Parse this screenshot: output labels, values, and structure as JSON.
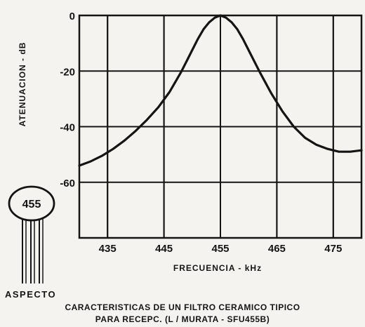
{
  "chart_data": {
    "type": "line",
    "xlabel": "FRECUENCIA - kHz",
    "ylabel": "ATENUACION - dB",
    "xlim": [
      430,
      480
    ],
    "ylim": [
      -80,
      0
    ],
    "xticks": [
      435,
      445,
      455,
      465,
      475
    ],
    "yticks": [
      0,
      -20,
      -40,
      -60
    ],
    "grid": true,
    "series": [
      {
        "x": [
          430,
          432,
          434,
          436,
          438,
          440,
          442,
          444,
          446,
          448,
          449,
          450,
          451,
          452,
          453,
          454,
          455,
          456,
          457,
          458,
          459,
          460,
          462,
          464,
          466,
          468,
          470,
          472,
          474,
          476,
          478,
          480
        ],
        "y": [
          -54,
          -52.5,
          -50.5,
          -48,
          -45,
          -41.5,
          -37.5,
          -33,
          -27.5,
          -20.5,
          -16.5,
          -12.5,
          -8.5,
          -5,
          -2.5,
          -0.8,
          0,
          -0.8,
          -2.5,
          -5,
          -8.5,
          -12.5,
          -20.5,
          -28,
          -34.5,
          -40,
          -44,
          -46.5,
          -48,
          -49,
          -49,
          -48.5
        ]
      }
    ]
  },
  "caption": {
    "line1": "CARACTERISTICAS DE UN FILTRO CERAMICO TIPICO",
    "line2": "PARA RECEPC. (L / MURATA - SFU455B)"
  },
  "component": {
    "label": "455",
    "aspect_label": "ASPECTO"
  }
}
